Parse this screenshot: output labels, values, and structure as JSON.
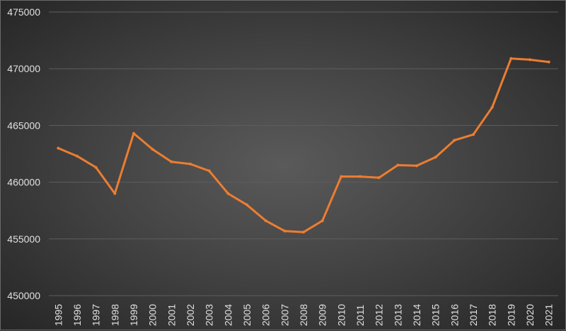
{
  "chart_data": {
    "type": "line",
    "title": "",
    "xlabel": "",
    "ylabel": "",
    "x": [
      "1995",
      "1996",
      "1997",
      "1998",
      "1999",
      "2000",
      "2001",
      "2002",
      "2003",
      "2004",
      "2005",
      "2006",
      "2007",
      "2008",
      "2009",
      "2010",
      "2011",
      "2012",
      "2013",
      "2014",
      "2015",
      "2016",
      "2017",
      "2018",
      "2019",
      "2020",
      "2021"
    ],
    "series": [
      {
        "values": [
          463000,
          462300,
          461300,
          459000,
          464300,
          462900,
          461800,
          461600,
          461000,
          459000,
          458000,
          456600,
          455700,
          455600,
          456600,
          460500,
          460500,
          460400,
          461500,
          461450,
          462200,
          463700,
          464200,
          466600,
          470900,
          470800,
          470600
        ],
        "color": "#ed7d31"
      }
    ],
    "ylim": [
      450000,
      475000
    ],
    "yticks": [
      "450000",
      "455000",
      "460000",
      "465000",
      "470000",
      "475000"
    ],
    "grid": true,
    "legend": "none"
  }
}
